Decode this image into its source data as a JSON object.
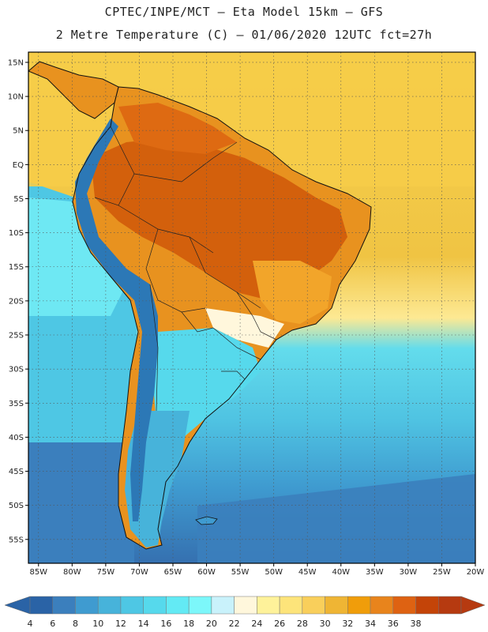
{
  "header": {
    "line1": "CPTEC/INPE/MCT –  Eta Model 15km – GFS",
    "line2": "2 Metre Temperature (C) – 01/06/2020 12UTC fct=27h"
  },
  "map": {
    "lat_labels": [
      "15N",
      "10N",
      "5N",
      "EQ",
      "5S",
      "10S",
      "15S",
      "20S",
      "25S",
      "30S",
      "35S",
      "40S",
      "45S",
      "50S",
      "55S"
    ],
    "lon_labels": [
      "85W",
      "80W",
      "75W",
      "70W",
      "65W",
      "60W",
      "55W",
      "50W",
      "45W",
      "40W",
      "35W",
      "30W",
      "25W",
      "20W"
    ]
  },
  "colorbar": {
    "labels": [
      "4",
      "6",
      "8",
      "10",
      "12",
      "14",
      "16",
      "18",
      "20",
      "22",
      "24",
      "26",
      "28",
      "30",
      "32",
      "34",
      "36",
      "38"
    ],
    "colors": [
      "#2a63a6",
      "#3b7fbd",
      "#3f9bd0",
      "#47b3da",
      "#4ec7e4",
      "#56d9ec",
      "#63eaf4",
      "#7cf7fa",
      "#c9f2fb",
      "#fff7dc",
      "#fef29a",
      "#fde47a",
      "#f9cf5b",
      "#efb534",
      "#f09d0a",
      "#e8841c",
      "#de6212",
      "#c44408",
      "#b63a10"
    ]
  },
  "colors": {
    "ocean_warm": "#f0c443",
    "ocean_mid": "#5ed2e6",
    "ocean_cool": "#4aaed8",
    "ocean_cold": "#3b7fbd",
    "land_hot": "#d3600c",
    "land_warm": "#e8921f",
    "andes": "#2c78b6"
  }
}
